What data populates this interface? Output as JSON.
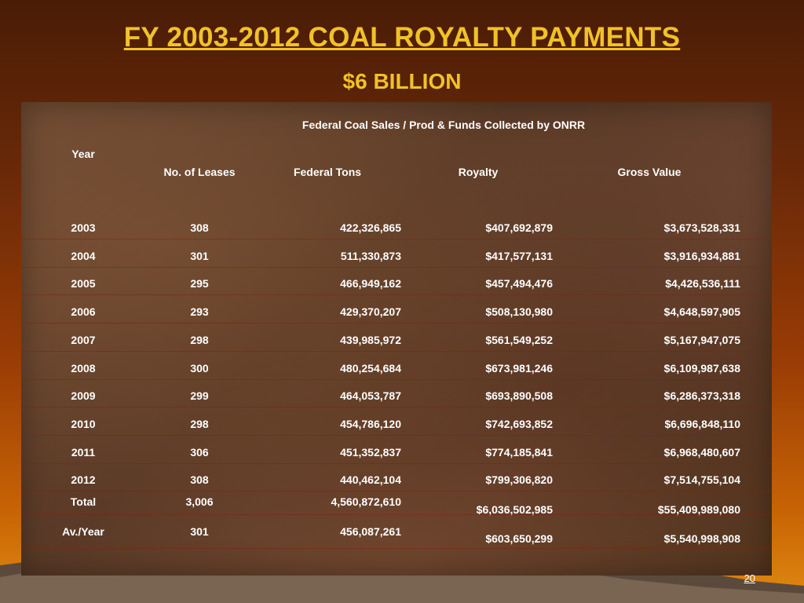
{
  "title": "FY 2003-2012 COAL ROYALTY PAYMENTS",
  "subtitle": "$6 BILLION",
  "table": {
    "group_header": "Federal Coal Sales / Prod & Funds Collected by ONRR",
    "headers": {
      "year": "Year",
      "leases": "No. of Leases",
      "tons": "Federal Tons",
      "royalty": "Royalty",
      "gross": "Gross Value"
    },
    "rows": [
      {
        "year": "2003",
        "leases": "308",
        "tons": "422,326,865",
        "royalty": "$407,692,879",
        "gross": "$3,673,528,331"
      },
      {
        "year": "2004",
        "leases": "301",
        "tons": "511,330,873",
        "royalty": "$417,577,131",
        "gross": "$3,916,934,881"
      },
      {
        "year": "2005",
        "leases": "295",
        "tons": "466,949,162",
        "royalty": "$457,494,476",
        "gross": "$4,426,536,111"
      },
      {
        "year": "2006",
        "leases": "293",
        "tons": "429,370,207",
        "royalty": "$508,130,980",
        "gross": "$4,648,597,905"
      },
      {
        "year": "2007",
        "leases": "298",
        "tons": "439,985,972",
        "royalty": "$561,549,252",
        "gross": "$5,167,947,075"
      },
      {
        "year": "2008",
        "leases": "300",
        "tons": "480,254,684",
        "royalty": "$673,981,246",
        "gross": "$6,109,987,638"
      },
      {
        "year": "2009",
        "leases": "299",
        "tons": "464,053,787",
        "royalty": "$693,890,508",
        "gross": "$6,286,373,318"
      },
      {
        "year": "2010",
        "leases": "298",
        "tons": "454,786,120",
        "royalty": "$742,693,852",
        "gross": "$6,696,848,110"
      },
      {
        "year": "2011",
        "leases": "306",
        "tons": "451,352,837",
        "royalty": "$774,185,841",
        "gross": "$6,968,480,607"
      },
      {
        "year": "2012",
        "leases": "308",
        "tons": "440,462,104",
        "royalty": "$799,306,820",
        "gross": "$7,514,755,104"
      }
    ],
    "total": {
      "year": "Total",
      "leases": "3,006",
      "tons": "4,560,872,610",
      "royalty": "$6,036,502,985",
      "gross": "$55,409,989,080"
    },
    "average": {
      "year": "Av./Year",
      "leases": "301",
      "tons": "456,087,261",
      "royalty": "$603,650,299",
      "gross": "$5,540,998,908"
    }
  },
  "page_number": "20"
}
